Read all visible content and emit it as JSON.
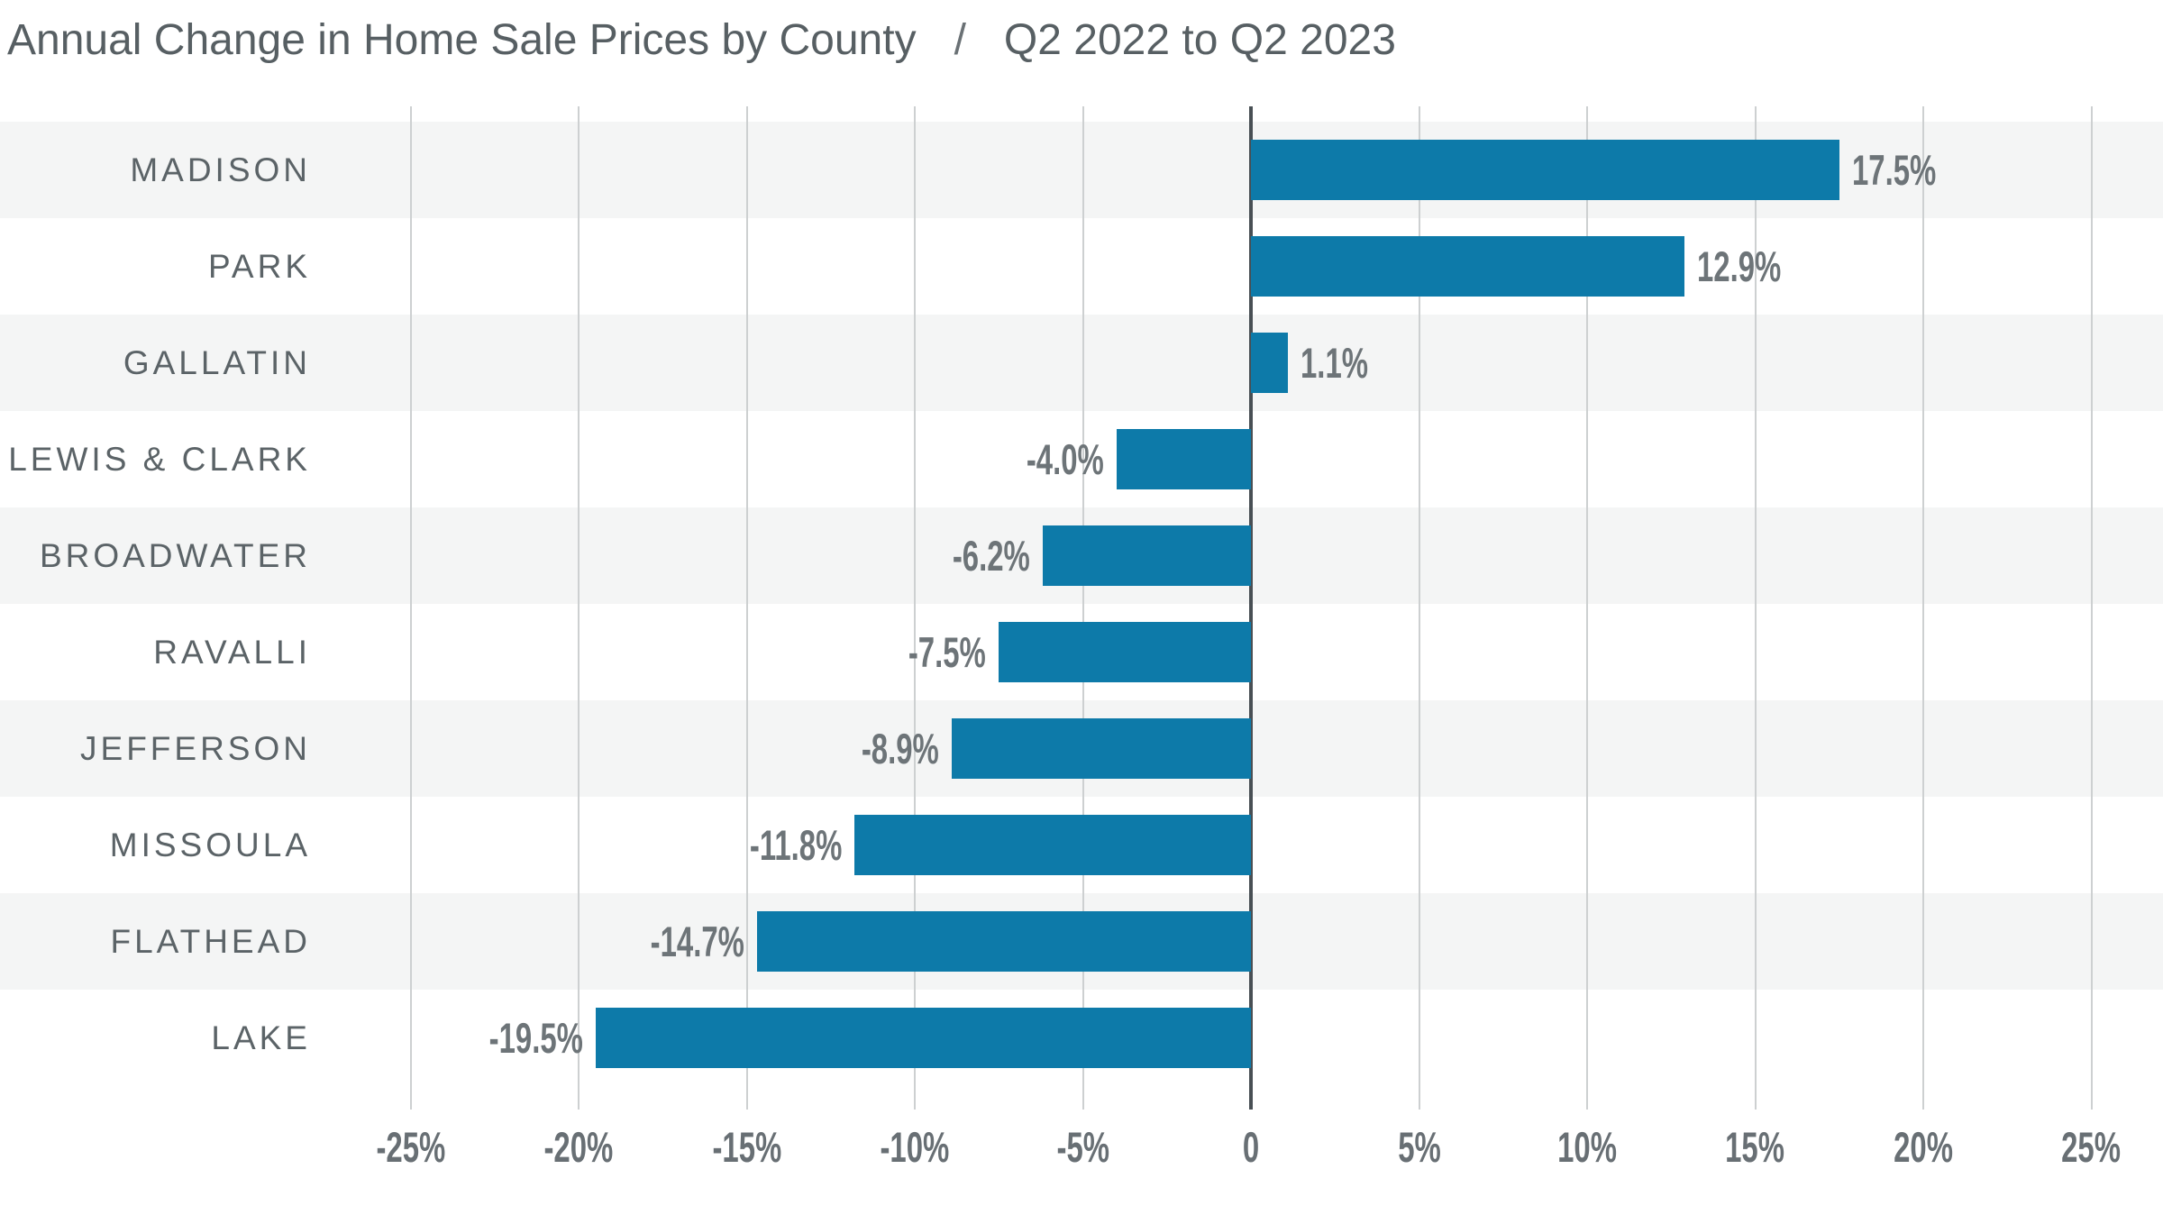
{
  "title": {
    "main": "Annual Change in Home Sale Prices by County",
    "separator": "/",
    "period": "Q2 2022 to Q2 2023"
  },
  "chart_data": {
    "type": "bar",
    "orientation": "horizontal",
    "title": "Annual Change in Home Sale Prices by County / Q2 2022 to Q2 2023",
    "xlabel": "",
    "ylabel": "",
    "categories": [
      "MADISON",
      "PARK",
      "GALLATIN",
      "LEWIS & CLARK",
      "BROADWATER",
      "RAVALLI",
      "JEFFERSON",
      "MISSOULA",
      "FLATHEAD",
      "LAKE"
    ],
    "values": [
      17.5,
      12.9,
      1.1,
      -4.0,
      -6.2,
      -7.5,
      -8.9,
      -11.8,
      -14.7,
      -19.5
    ],
    "value_labels": [
      "17.5%",
      "12.9%",
      "1.1%",
      "-4.0%",
      "-6.2%",
      "-7.5%",
      "-8.9%",
      "-11.8%",
      "-14.7%",
      "-19.5%"
    ],
    "x_axis": {
      "min": -25,
      "max": 25,
      "step": 5,
      "ticks": [
        {
          "v": -25,
          "label": "-25%"
        },
        {
          "v": -20,
          "label": "-20%"
        },
        {
          "v": -15,
          "label": "-15%"
        },
        {
          "v": -10,
          "label": "-10%"
        },
        {
          "v": -5,
          "label": "-5%"
        },
        {
          "v": 0,
          "label": "0"
        },
        {
          "v": 5,
          "label": "5%"
        },
        {
          "v": 10,
          "label": "10%"
        },
        {
          "v": 15,
          "label": "15%"
        },
        {
          "v": 20,
          "label": "20%"
        },
        {
          "v": 25,
          "label": "25%"
        }
      ]
    },
    "grid": true,
    "legend": false,
    "row_shading": "alternating, first row shaded",
    "colors": {
      "bar": "#0d7aa9",
      "band": "#f4f5f5",
      "grid": "#cdd0d1",
      "zero_line": "#484f54",
      "title_text": "#575f63",
      "category_text": "#5b6367",
      "tick_text": "#686f74",
      "value_text": "#6d7478",
      "background": "#ffffff"
    }
  }
}
